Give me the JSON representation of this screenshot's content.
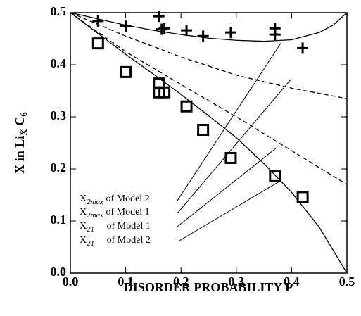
{
  "chart_data": {
    "type": "scatter",
    "xlabel": "DISORDER PROBABILITY P",
    "ylabel": {
      "main": "X  in  Li",
      "sub": "X",
      "main2": " C",
      "sub2": "6"
    },
    "xlim": [
      0,
      0.5
    ],
    "ylim": [
      0,
      0.5
    ],
    "xticks": [
      {
        "value": 0,
        "label": "0.0"
      },
      0.1,
      0.2,
      0.3,
      0.4,
      0.5
    ],
    "yticks": [
      {
        "value": 0,
        "label": "0.0"
      },
      0.1,
      0.2,
      0.3,
      0.4,
      0.5
    ],
    "series": [
      {
        "type": "scatter",
        "marker": "plus",
        "color": "#000000",
        "x": [
          0.05,
          0.1,
          0.16,
          0.165,
          0.17,
          0.21,
          0.24,
          0.29,
          0.37,
          0.37,
          0.42
        ],
        "values": [
          0.484,
          0.474,
          0.493,
          0.468,
          0.47,
          0.466,
          0.455,
          0.462,
          0.47,
          0.458,
          0.432
        ]
      },
      {
        "type": "scatter",
        "marker": "square",
        "color": "#000000",
        "x": [
          0.05,
          0.1,
          0.16,
          0.16,
          0.17,
          0.21,
          0.24,
          0.29,
          0.37,
          0.42
        ],
        "values": [
          0.441,
          0.386,
          0.364,
          0.347,
          0.347,
          0.32,
          0.275,
          0.221,
          0.186,
          0.146
        ]
      },
      {
        "type": "line",
        "dashed": false,
        "color": "#000000",
        "x": [
          0,
          0.05,
          0.1,
          0.15,
          0.2,
          0.25,
          0.3,
          0.35,
          0.4,
          0.45,
          0.475,
          0.5
        ],
        "values": [
          0.5,
          0.488,
          0.476,
          0.466,
          0.458,
          0.451,
          0.447,
          0.445,
          0.448,
          0.462,
          0.476,
          0.5
        ]
      },
      {
        "type": "line",
        "dashed": true,
        "color": "#000000",
        "x": [
          0,
          0.1,
          0.2,
          0.3,
          0.4,
          0.5
        ],
        "values": [
          0.5,
          0.455,
          0.415,
          0.38,
          0.355,
          0.335
        ]
      },
      {
        "type": "line",
        "dashed": true,
        "color": "#000000",
        "x": [
          0,
          0.1,
          0.2,
          0.3,
          0.4,
          0.5
        ],
        "values": [
          0.5,
          0.425,
          0.362,
          0.3,
          0.235,
          0.17
        ]
      },
      {
        "type": "line",
        "dashed": false,
        "color": "#000000",
        "x": [
          0,
          0.05,
          0.1,
          0.15,
          0.2,
          0.25,
          0.3,
          0.35,
          0.4,
          0.45,
          0.5
        ],
        "values": [
          0.5,
          0.46,
          0.42,
          0.382,
          0.343,
          0.302,
          0.26,
          0.21,
          0.155,
          0.088,
          0
        ]
      }
    ],
    "annotations": [
      {
        "symbol": "X",
        "sub": "2max",
        "text": " of Model 2"
      },
      {
        "symbol": "X",
        "sub": "2max",
        "text": " of Model 1"
      },
      {
        "symbol": "X",
        "sub": "21",
        "text": "     of Model 1"
      },
      {
        "symbol": "X",
        "sub": "21",
        "text": "     of Model 2"
      }
    ]
  }
}
